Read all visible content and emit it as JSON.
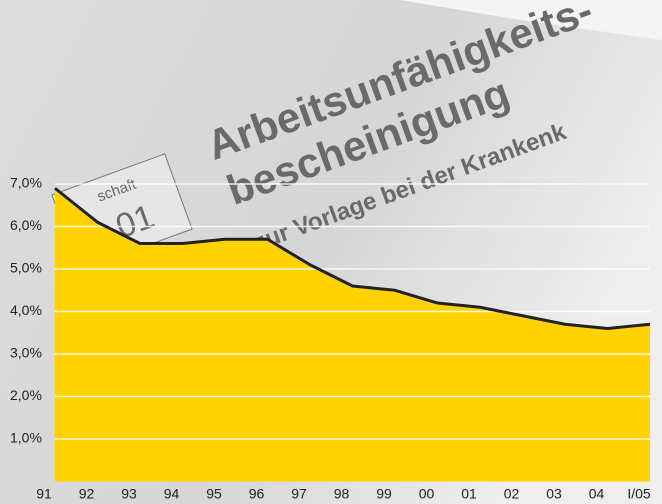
{
  "chart_data": {
    "type": "area",
    "annotations": [
      "Arbeitsunfähigkeits-",
      "bescheinigung",
      "zur Vorlage bei der Krankenk",
      "schaft",
      "01"
    ],
    "categories": [
      "91",
      "92",
      "93",
      "94",
      "95",
      "96",
      "97",
      "98",
      "99",
      "00",
      "01",
      "02",
      "03",
      "04",
      "I/05"
    ],
    "values": [
      6.9,
      6.1,
      5.6,
      5.6,
      5.7,
      5.7,
      5.1,
      4.6,
      4.5,
      4.2,
      4.1,
      3.9,
      3.7,
      3.6,
      3.7
    ],
    "color": "#ffd200",
    "line_color": "#222222",
    "ylim": [
      0,
      11.33
    ],
    "yticks": [
      {
        "value": 1,
        "label": "1,0%"
      },
      {
        "value": 2,
        "label": "2,0%"
      },
      {
        "value": 3,
        "label": "3,0%"
      },
      {
        "value": 4,
        "label": "4,0%"
      },
      {
        "value": 5,
        "label": "5,0%"
      },
      {
        "value": 6,
        "label": "6,0%"
      },
      {
        "value": 7,
        "label": "7,0%"
      }
    ],
    "grid": true
  }
}
